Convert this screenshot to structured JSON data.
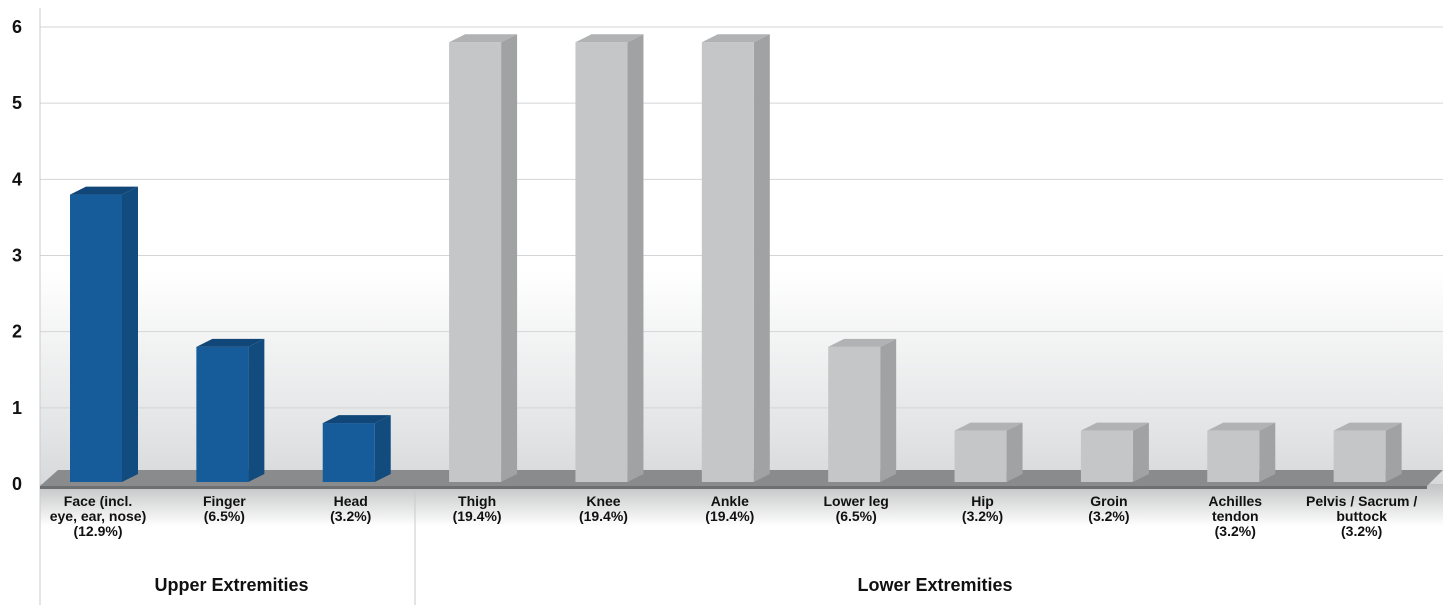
{
  "chart_data": {
    "type": "bar",
    "ylim": [
      0,
      6
    ],
    "yticks": [
      "0",
      "1",
      "2",
      "3",
      "4",
      "5",
      "6"
    ],
    "grid": true,
    "categories": [
      {
        "label_lines": [
          "Face (incl.",
          "eye, ear, nose)",
          "(12.9%)"
        ],
        "value": 3.8,
        "group": 0
      },
      {
        "label_lines": [
          "Finger",
          "(6.5%)"
        ],
        "value": 1.8,
        "group": 0
      },
      {
        "label_lines": [
          "Head",
          "(3.2%)"
        ],
        "value": 0.8,
        "group": 0
      },
      {
        "label_lines": [
          "Thigh",
          "(19.4%)"
        ],
        "value": 5.8,
        "group": 1
      },
      {
        "label_lines": [
          "Knee",
          "(19.4%)"
        ],
        "value": 5.8,
        "group": 1
      },
      {
        "label_lines": [
          "Ankle",
          "(19.4%)"
        ],
        "value": 5.8,
        "group": 1
      },
      {
        "label_lines": [
          "Lower leg",
          "(6.5%)"
        ],
        "value": 1.8,
        "group": 1
      },
      {
        "label_lines": [
          "Hip",
          "(3.2%)"
        ],
        "value": 0.7,
        "group": 1
      },
      {
        "label_lines": [
          "Groin",
          "(3.2%)"
        ],
        "value": 0.7,
        "group": 1
      },
      {
        "label_lines": [
          "Achilles",
          "tendon",
          "(3.2%)"
        ],
        "value": 0.7,
        "group": 1
      },
      {
        "label_lines": [
          "Pelvis / Sacrum /",
          "buttock",
          "(3.2%)"
        ],
        "value": 0.7,
        "group": 1
      }
    ],
    "groups": [
      {
        "label": "Upper Extremities",
        "color": "#165b9a"
      },
      {
        "label": "Lower Extremities",
        "color": "#c4c6c8"
      }
    ]
  }
}
